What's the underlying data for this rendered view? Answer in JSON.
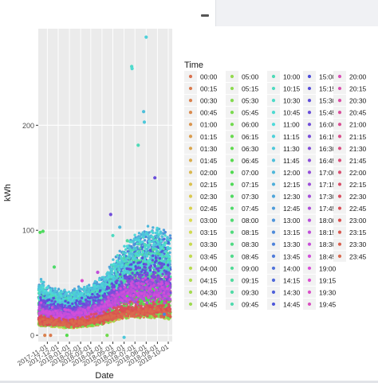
{
  "window": {
    "minimize_icon": "minimize-icon"
  },
  "chart_data": {
    "type": "scatter",
    "title": "",
    "xlabel": "Date",
    "ylabel": "kWh",
    "ylim": [
      -6,
      292
    ],
    "yticks": [
      0,
      100,
      200
    ],
    "xlim": [
      "2017-10-07",
      "2018-10-12"
    ],
    "xticks": [
      "2017-11-01",
      "2017-12-01",
      "2018-01-01",
      "2018-02-01",
      "2018-03-01",
      "2018-04-01",
      "2018-05-01",
      "2018-06-01",
      "2018-07-01",
      "2018-08-01",
      "2018-09-01",
      "2018-10-01"
    ],
    "grid": true,
    "panel_background": "#ebebeb",
    "legend": {
      "title": "Time",
      "placement": "right"
    },
    "times": [
      "00:00",
      "00:15",
      "00:30",
      "00:45",
      "01:00",
      "01:15",
      "01:30",
      "01:45",
      "02:00",
      "02:15",
      "02:30",
      "02:45",
      "03:00",
      "03:15",
      "03:30",
      "03:45",
      "04:00",
      "04:15",
      "04:30",
      "04:45",
      "05:00",
      "05:15",
      "05:30",
      "05:45",
      "06:00",
      "06:15",
      "06:30",
      "06:45",
      "07:00",
      "07:15",
      "07:30",
      "07:45",
      "08:00",
      "08:15",
      "08:30",
      "08:45",
      "09:00",
      "09:15",
      "09:30",
      "09:45",
      "10:00",
      "10:15",
      "10:30",
      "10:45",
      "11:00",
      "11:15",
      "11:30",
      "11:45",
      "12:00",
      "12:15",
      "12:30",
      "12:45",
      "13:00",
      "13:15",
      "13:30",
      "13:45",
      "14:00",
      "14:15",
      "14:30",
      "14:45",
      "15:00",
      "15:15",
      "15:30",
      "15:45",
      "16:00",
      "16:15",
      "16:30",
      "16:45",
      "17:00",
      "17:15",
      "17:30",
      "17:45",
      "18:00",
      "18:15",
      "18:30",
      "18:45",
      "19:00",
      "19:15",
      "19:30",
      "19:45",
      "20:00",
      "20:15",
      "20:30",
      "20:45",
      "21:00",
      "21:15",
      "21:30",
      "21:45",
      "22:00",
      "22:15",
      "22:30",
      "22:45",
      "23:00",
      "23:15",
      "23:30",
      "23:45"
    ],
    "envelope": [
      {
        "date": "2017-10-10",
        "low": 8,
        "high": 62
      },
      {
        "date": "2017-11-01",
        "low": 9,
        "high": 52
      },
      {
        "date": "2017-12-01",
        "low": 8,
        "high": 48
      },
      {
        "date": "2018-01-01",
        "low": 7,
        "high": 47
      },
      {
        "date": "2018-02-01",
        "low": 8,
        "high": 52
      },
      {
        "date": "2018-03-01",
        "low": 9,
        "high": 55
      },
      {
        "date": "2018-04-01",
        "low": 10,
        "high": 63
      },
      {
        "date": "2018-05-01",
        "low": 12,
        "high": 82
      },
      {
        "date": "2018-06-01",
        "low": 14,
        "high": 100
      },
      {
        "date": "2018-07-01",
        "low": 14,
        "high": 112
      },
      {
        "date": "2018-08-01",
        "low": 13,
        "high": 118
      },
      {
        "date": "2018-09-01",
        "low": 13,
        "high": 120
      },
      {
        "date": "2018-10-05",
        "low": 12,
        "high": 115
      }
    ],
    "highlighted_points": [
      {
        "time": "07:15",
        "date": "2017-10-12",
        "kWh": 98
      },
      {
        "time": "07:30",
        "date": "2017-10-20",
        "kWh": 99
      },
      {
        "time": "00:30",
        "date": "2017-10-25",
        "kWh": 0
      },
      {
        "time": "00:15",
        "date": "2017-11-10",
        "kWh": 0
      },
      {
        "time": "07:45",
        "date": "2017-11-20",
        "kWh": 65
      },
      {
        "time": "06:45",
        "date": "2017-12-25",
        "kWh": 0
      },
      {
        "time": "19:30",
        "date": "2018-02-05",
        "kWh": 52
      },
      {
        "time": "18:15",
        "date": "2018-03-20",
        "kWh": 60
      },
      {
        "time": "06:00",
        "date": "2018-04-15",
        "kWh": 0
      },
      {
        "time": "16:00",
        "date": "2018-04-25",
        "kWh": 115
      },
      {
        "time": "10:15",
        "date": "2018-05-01",
        "kWh": 95
      },
      {
        "time": "12:00",
        "date": "2018-05-20",
        "kWh": 103
      },
      {
        "time": "11:30",
        "date": "2018-06-01",
        "kWh": -2
      },
      {
        "time": "09:15",
        "date": "2018-06-10",
        "kWh": 90
      },
      {
        "time": "10:30",
        "date": "2018-06-22",
        "kWh": 256
      },
      {
        "time": "10:45",
        "date": "2018-06-23",
        "kWh": 254
      },
      {
        "time": "10:00",
        "date": "2018-07-10",
        "kWh": 181
      },
      {
        "time": "11:45",
        "date": "2018-07-25",
        "kWh": 213
      },
      {
        "time": "11:30",
        "date": "2018-07-27",
        "kWh": 203
      },
      {
        "time": "11:15",
        "date": "2018-08-01",
        "kWh": 284
      },
      {
        "time": "15:45",
        "date": "2018-08-25",
        "kWh": 150
      },
      {
        "time": "13:30",
        "date": "2018-09-20",
        "kWh": 20
      }
    ]
  }
}
